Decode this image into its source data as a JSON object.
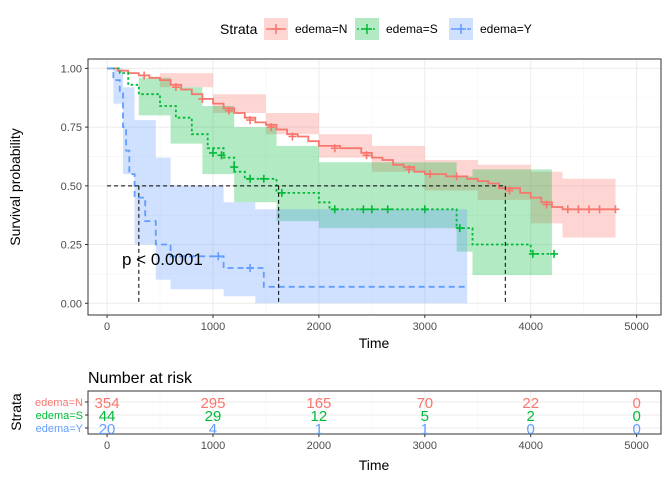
{
  "colors": {
    "edema_N": "#F8766D",
    "edema_S": "#00BA38",
    "edema_Y": "#619CFF",
    "grid_major": "#EBEBEB",
    "grid_minor": "#F4F4F4",
    "panel_border": "#333333"
  },
  "legend": {
    "title": "Strata",
    "placement": "top",
    "items": [
      {
        "label": "edema=N",
        "color": "#F8766D",
        "style": "solid"
      },
      {
        "label": "edema=S",
        "color": "#00BA38",
        "style": "dotted"
      },
      {
        "label": "edema=Y",
        "color": "#619CFF",
        "style": "dashed"
      }
    ]
  },
  "pvalue_text": "p < 0.0001",
  "risk_table": {
    "title": "Number at risk",
    "ylabel": "Strata",
    "xlabel": "Time",
    "times": [
      0,
      1000,
      2000,
      3000,
      4000,
      5000
    ],
    "x_ticks": [
      "0",
      "1000",
      "2000",
      "3000",
      "4000",
      "5000"
    ],
    "rows": [
      {
        "label": "edema=N",
        "color": "#F8766D",
        "values": [
          "354",
          "295",
          "165",
          "70",
          "22",
          "0"
        ]
      },
      {
        "label": "edema=S",
        "color": "#00BA38",
        "values": [
          "44",
          "29",
          "12",
          "5",
          "2",
          "0"
        ]
      },
      {
        "label": "edema=Y",
        "color": "#619CFF",
        "values": [
          "20",
          "4",
          "1",
          "1",
          "0",
          "0"
        ]
      }
    ]
  },
  "chart_data": {
    "type": "line",
    "subtype": "kaplan-meier step",
    "xlabel": "Time",
    "ylabel": "Survival probability",
    "xlim": [
      -180,
      5230
    ],
    "ylim": [
      -0.05,
      1.04
    ],
    "x_ticks": [
      0,
      1000,
      2000,
      3000,
      4000,
      5000
    ],
    "y_ticks": [
      0.0,
      0.25,
      0.5,
      0.75,
      1.0
    ],
    "y_tick_labels": [
      "0.00",
      "0.25",
      "0.50",
      "0.75",
      "1.00"
    ],
    "grid": true,
    "median_lines": {
      "y": 0.5,
      "x": [
        300,
        1620,
        3760
      ]
    },
    "series": [
      {
        "name": "edema=N",
        "color": "#F8766D",
        "style": "solid",
        "steps": [
          [
            0,
            1.0
          ],
          [
            100,
            0.99
          ],
          [
            200,
            0.98
          ],
          [
            300,
            0.97
          ],
          [
            400,
            0.96
          ],
          [
            500,
            0.95
          ],
          [
            600,
            0.93
          ],
          [
            700,
            0.91
          ],
          [
            800,
            0.89
          ],
          [
            900,
            0.87
          ],
          [
            1000,
            0.85
          ],
          [
            1100,
            0.83
          ],
          [
            1200,
            0.81
          ],
          [
            1300,
            0.79
          ],
          [
            1400,
            0.77
          ],
          [
            1500,
            0.76
          ],
          [
            1600,
            0.74
          ],
          [
            1700,
            0.72
          ],
          [
            1800,
            0.71
          ],
          [
            1900,
            0.69
          ],
          [
            2000,
            0.67
          ],
          [
            2200,
            0.66
          ],
          [
            2400,
            0.64
          ],
          [
            2500,
            0.62
          ],
          [
            2600,
            0.61
          ],
          [
            2700,
            0.59
          ],
          [
            2800,
            0.58
          ],
          [
            2900,
            0.56
          ],
          [
            3000,
            0.55
          ],
          [
            3200,
            0.54
          ],
          [
            3400,
            0.53
          ],
          [
            3500,
            0.52
          ],
          [
            3600,
            0.51
          ],
          [
            3700,
            0.49
          ],
          [
            3900,
            0.47
          ],
          [
            4000,
            0.45
          ],
          [
            4100,
            0.43
          ],
          [
            4200,
            0.41
          ],
          [
            4300,
            0.4
          ],
          [
            4800,
            0.4
          ]
        ],
        "lower": [
          [
            0,
            1.0
          ],
          [
            500,
            0.92
          ],
          [
            1000,
            0.81
          ],
          [
            1500,
            0.72
          ],
          [
            2000,
            0.62
          ],
          [
            2500,
            0.56
          ],
          [
            3000,
            0.48
          ],
          [
            3500,
            0.44
          ],
          [
            4000,
            0.34
          ],
          [
            4300,
            0.28
          ],
          [
            4800,
            0.28
          ]
        ],
        "upper": [
          [
            0,
            1.0
          ],
          [
            500,
            0.98
          ],
          [
            1000,
            0.89
          ],
          [
            1500,
            0.81
          ],
          [
            2000,
            0.72
          ],
          [
            2500,
            0.67
          ],
          [
            3000,
            0.61
          ],
          [
            3500,
            0.59
          ],
          [
            4000,
            0.56
          ],
          [
            4300,
            0.53
          ],
          [
            4800,
            0.53
          ]
        ],
        "censored": [
          [
            350,
            0.97
          ],
          [
            650,
            0.92
          ],
          [
            900,
            0.87
          ],
          [
            1150,
            0.82
          ],
          [
            1350,
            0.78
          ],
          [
            1550,
            0.75
          ],
          [
            1750,
            0.71
          ],
          [
            2150,
            0.66
          ],
          [
            2450,
            0.63
          ],
          [
            2850,
            0.57
          ],
          [
            3050,
            0.55
          ],
          [
            3300,
            0.54
          ],
          [
            3800,
            0.48
          ],
          [
            4150,
            0.42
          ],
          [
            4350,
            0.4
          ],
          [
            4450,
            0.4
          ],
          [
            4550,
            0.4
          ],
          [
            4650,
            0.4
          ],
          [
            4800,
            0.4
          ]
        ]
      },
      {
        "name": "edema=S",
        "color": "#00BA38",
        "style": "dotted",
        "steps": [
          [
            0,
            1.0
          ],
          [
            120,
            0.98
          ],
          [
            200,
            0.93
          ],
          [
            300,
            0.89
          ],
          [
            500,
            0.84
          ],
          [
            650,
            0.79
          ],
          [
            800,
            0.72
          ],
          [
            950,
            0.66
          ],
          [
            1100,
            0.62
          ],
          [
            1200,
            0.56
          ],
          [
            1300,
            0.53
          ],
          [
            1600,
            0.47
          ],
          [
            2000,
            0.43
          ],
          [
            2100,
            0.4
          ],
          [
            3300,
            0.32
          ],
          [
            3450,
            0.25
          ],
          [
            4000,
            0.21
          ],
          [
            4200,
            0.21
          ]
        ],
        "lower": [
          [
            0,
            1.0
          ],
          [
            300,
            0.8
          ],
          [
            600,
            0.68
          ],
          [
            900,
            0.55
          ],
          [
            1200,
            0.43
          ],
          [
            1600,
            0.35
          ],
          [
            2000,
            0.32
          ],
          [
            3300,
            0.22
          ],
          [
            3450,
            0.12
          ],
          [
            4200,
            0.12
          ]
        ],
        "upper": [
          [
            0,
            1.0
          ],
          [
            300,
            0.96
          ],
          [
            600,
            0.92
          ],
          [
            900,
            0.84
          ],
          [
            1200,
            0.75
          ],
          [
            1600,
            0.67
          ],
          [
            2000,
            0.6
          ],
          [
            3300,
            0.54
          ],
          [
            3450,
            0.57
          ],
          [
            4200,
            0.57
          ]
        ],
        "censored": [
          [
            1000,
            0.64
          ],
          [
            1080,
            0.63
          ],
          [
            1200,
            0.58
          ],
          [
            1350,
            0.53
          ],
          [
            1480,
            0.53
          ],
          [
            1650,
            0.47
          ],
          [
            2150,
            0.4
          ],
          [
            2420,
            0.4
          ],
          [
            2500,
            0.4
          ],
          [
            2650,
            0.4
          ],
          [
            3000,
            0.4
          ],
          [
            3330,
            0.32
          ],
          [
            4020,
            0.21
          ],
          [
            4220,
            0.21
          ]
        ]
      },
      {
        "name": "edema=Y",
        "color": "#619CFF",
        "style": "dashed",
        "steps": [
          [
            0,
            1.0
          ],
          [
            60,
            0.95
          ],
          [
            120,
            0.9
          ],
          [
            150,
            0.75
          ],
          [
            180,
            0.65
          ],
          [
            210,
            0.55
          ],
          [
            260,
            0.45
          ],
          [
            360,
            0.35
          ],
          [
            460,
            0.25
          ],
          [
            600,
            0.2
          ],
          [
            900,
            0.2
          ],
          [
            1100,
            0.15
          ],
          [
            1400,
            0.15
          ],
          [
            1480,
            0.07
          ],
          [
            3400,
            0.07
          ]
        ],
        "lower": [
          [
            0,
            1.0
          ],
          [
            60,
            0.85
          ],
          [
            150,
            0.55
          ],
          [
            260,
            0.25
          ],
          [
            460,
            0.1
          ],
          [
            600,
            0.06
          ],
          [
            1100,
            0.03
          ],
          [
            1400,
            0.0
          ],
          [
            3400,
            0.0
          ]
        ],
        "upper": [
          [
            0,
            1.0
          ],
          [
            60,
            1.0
          ],
          [
            150,
            0.92
          ],
          [
            260,
            0.78
          ],
          [
            460,
            0.62
          ],
          [
            600,
            0.5
          ],
          [
            1100,
            0.43
          ],
          [
            1400,
            0.4
          ],
          [
            3400,
            0.4
          ]
        ],
        "censored": [
          [
            1050,
            0.2
          ],
          [
            1350,
            0.15
          ]
        ]
      }
    ]
  }
}
